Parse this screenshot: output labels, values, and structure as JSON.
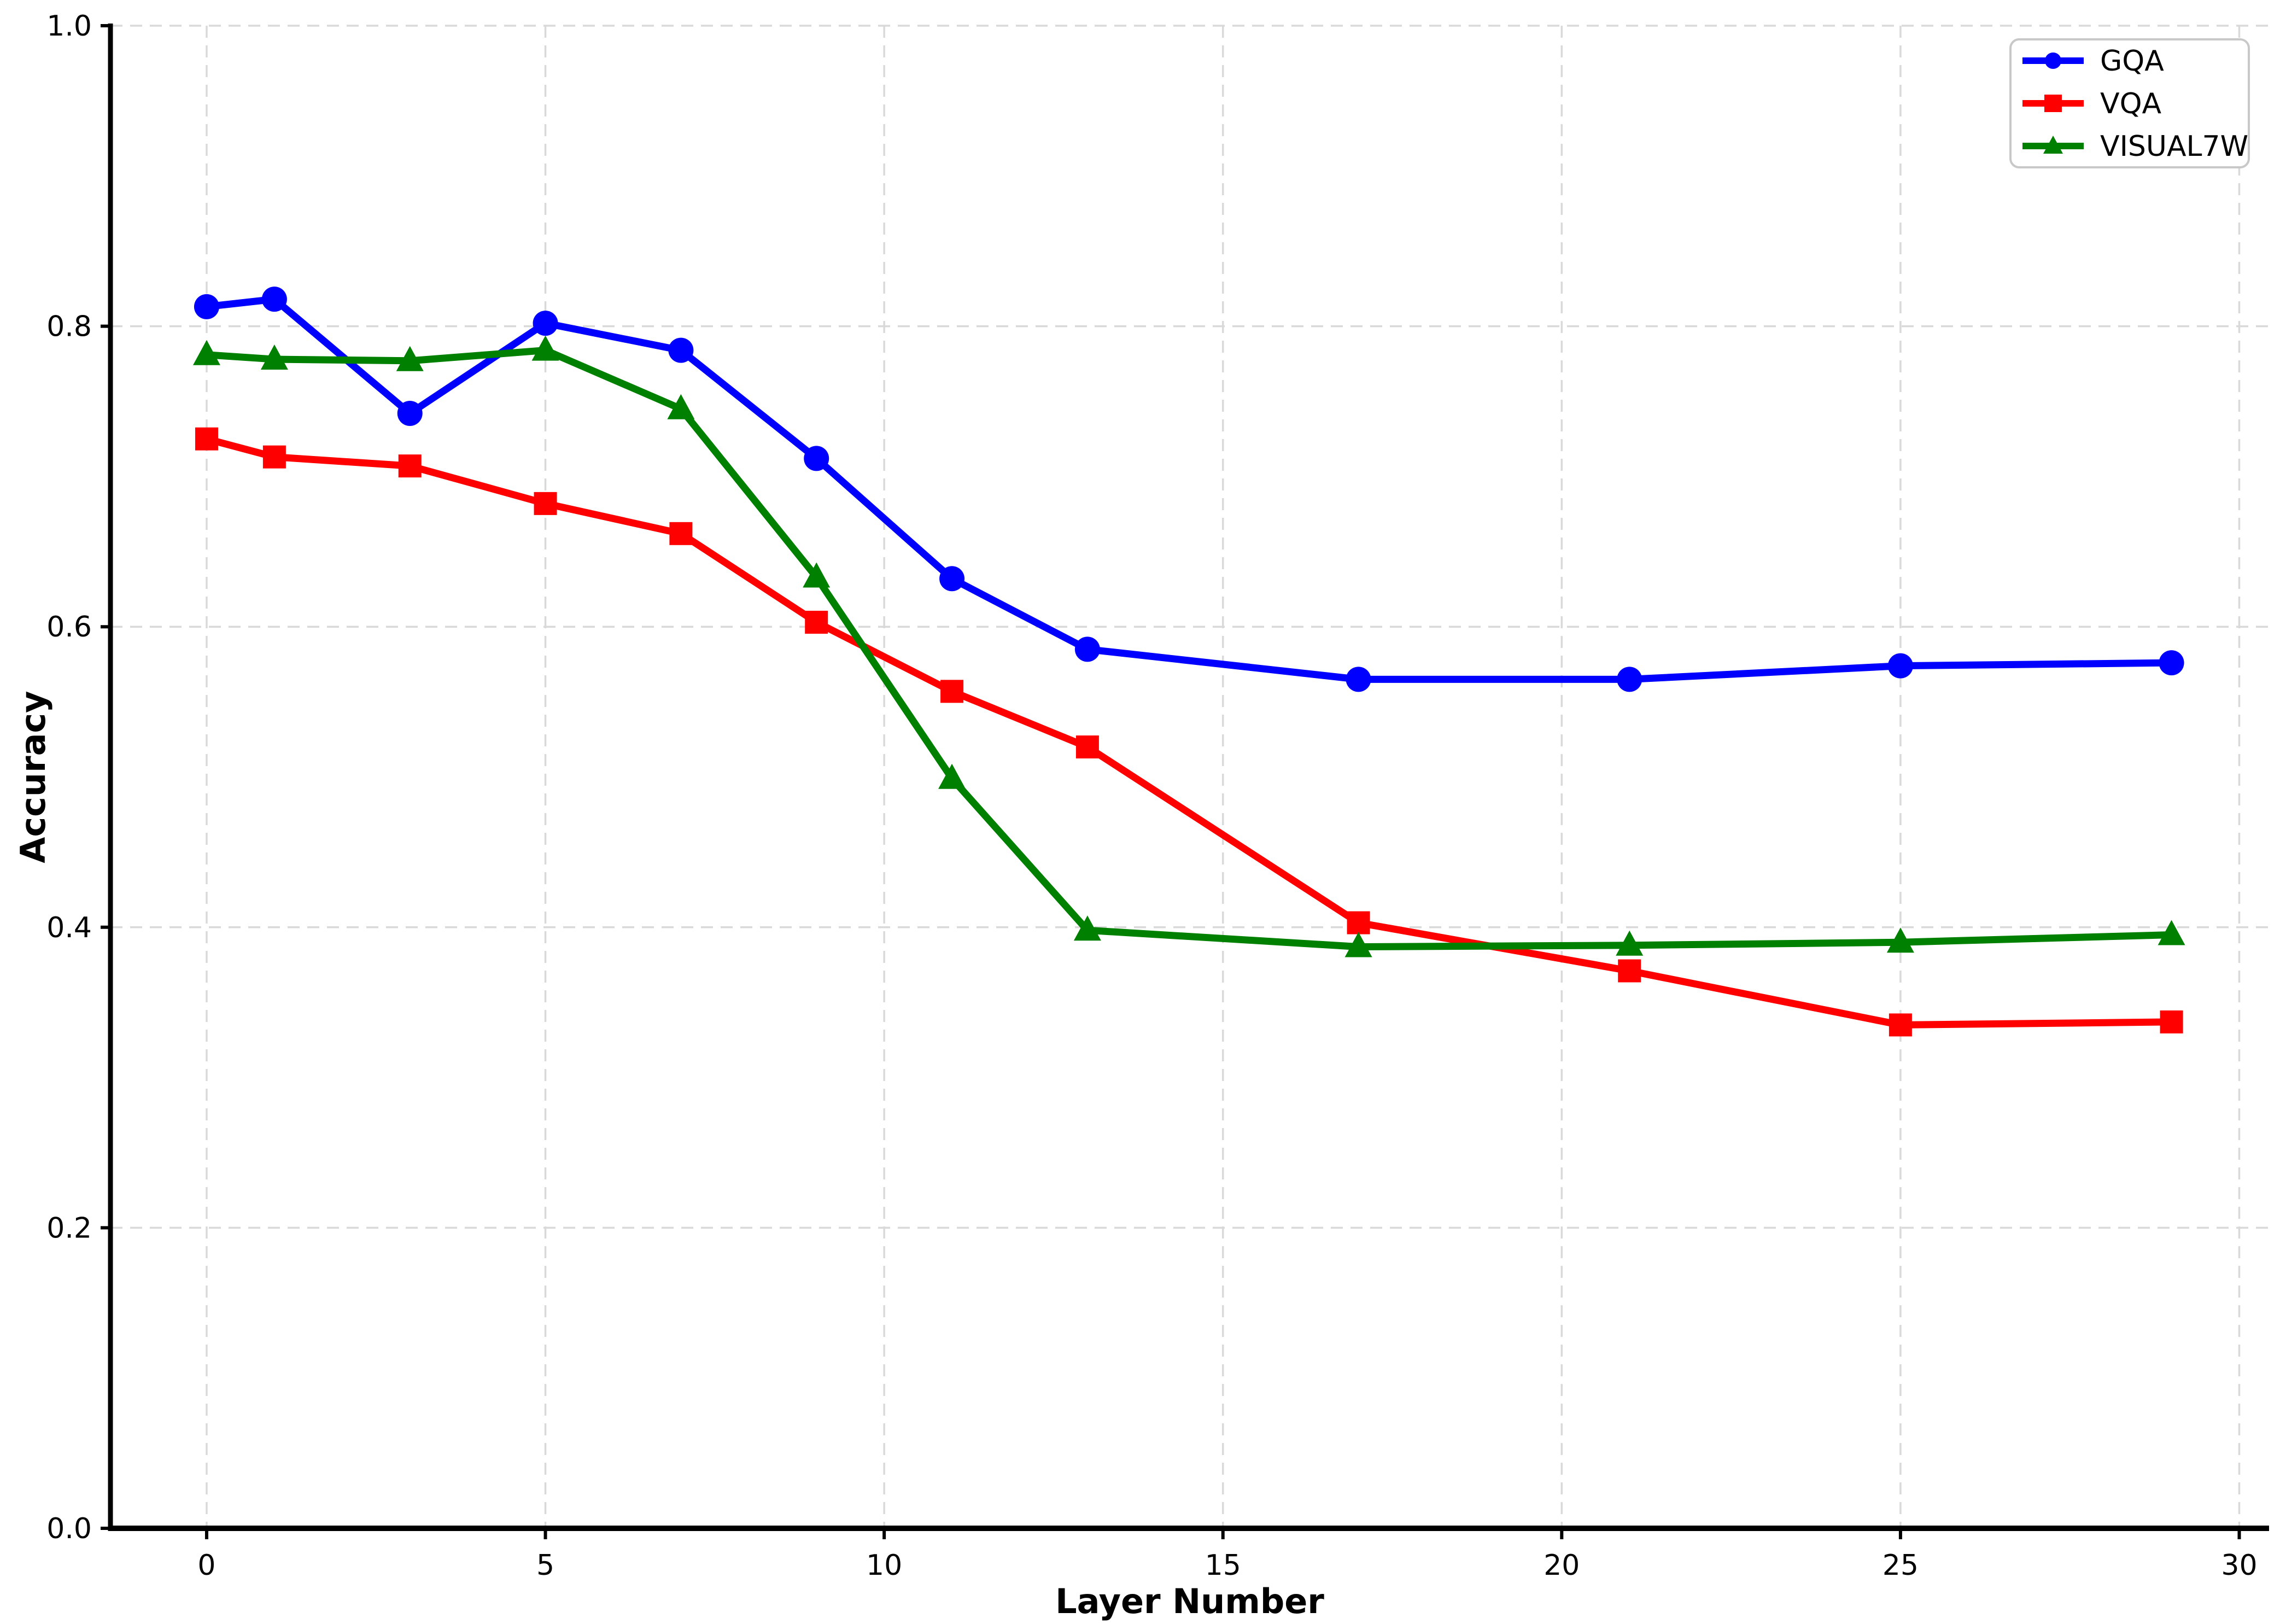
{
  "figure": {
    "background": "#ffffff",
    "title": ""
  },
  "chart_data": {
    "type": "line",
    "title": "",
    "xlabel": "Layer Number",
    "ylabel": "Accuracy",
    "x": [
      0,
      1,
      3,
      5,
      7,
      9,
      11,
      13,
      17,
      21,
      25,
      29
    ],
    "series": [
      {
        "name": "GQA",
        "color": "#0000ff",
        "marker": "circle",
        "values": [
          0.813,
          0.818,
          0.742,
          0.802,
          0.784,
          0.712,
          0.632,
          0.585,
          0.565,
          0.565,
          0.574,
          0.576
        ]
      },
      {
        "name": "VQA",
        "color": "#ff0000",
        "marker": "square",
        "values": [
          0.725,
          0.713,
          0.707,
          0.682,
          0.662,
          0.603,
          0.557,
          0.52,
          0.403,
          0.371,
          0.335,
          0.337
        ]
      },
      {
        "name": "VISUAL7W",
        "color": "#008000",
        "marker": "triangle",
        "values": [
          0.781,
          0.778,
          0.777,
          0.784,
          0.745,
          0.633,
          0.499,
          0.398,
          0.387,
          0.388,
          0.39,
          0.395
        ]
      }
    ],
    "xticks": [
      0,
      5,
      10,
      15,
      20,
      25,
      30
    ],
    "yticks": [
      0.0,
      0.2,
      0.4,
      0.6,
      0.8,
      1.0
    ],
    "xlim": [
      -1.42,
      30.44
    ],
    "ylim": [
      0.0,
      1.0
    ],
    "grid": true,
    "grid_color": "#d9d9d9",
    "axis_color": "#000000",
    "legend_position": "upper right",
    "legend_border_color": "#c8c8c8"
  }
}
